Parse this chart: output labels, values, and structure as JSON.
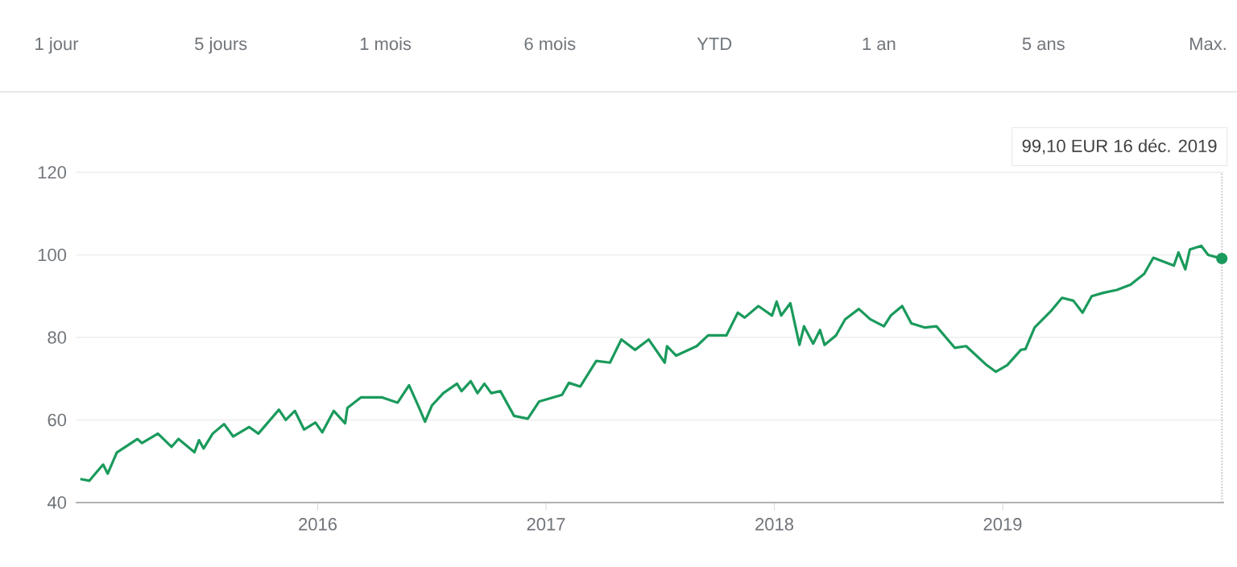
{
  "chart_data": {
    "type": "line",
    "x": [
      2014.96,
      2015.0,
      2015.06,
      2015.08,
      2015.12,
      2015.21,
      2015.23,
      2015.3,
      2015.36,
      2015.39,
      2015.46,
      2015.48,
      2015.5,
      2015.54,
      2015.59,
      2015.63,
      2015.7,
      2015.74,
      2015.83,
      2015.86,
      2015.9,
      2015.94,
      2015.99,
      2016.02,
      2016.07,
      2016.12,
      2016.13,
      2016.19,
      2016.28,
      2016.35,
      2016.4,
      2016.44,
      2016.47,
      2016.5,
      2016.55,
      2016.61,
      2016.63,
      2016.67,
      2016.7,
      2016.73,
      2016.76,
      2016.8,
      2016.86,
      2016.92,
      2016.97,
      2017.07,
      2017.1,
      2017.15,
      2017.22,
      2017.28,
      2017.33,
      2017.39,
      2017.45,
      2017.52,
      2017.53,
      2017.57,
      2017.66,
      2017.71,
      2017.79,
      2017.84,
      2017.87,
      2017.93,
      2017.99,
      2018.01,
      2018.03,
      2018.07,
      2018.11,
      2018.13,
      2018.17,
      2018.2,
      2018.22,
      2018.27,
      2018.31,
      2018.37,
      2018.42,
      2018.48,
      2018.51,
      2018.56,
      2018.6,
      2018.66,
      2018.71,
      2018.79,
      2018.84,
      2018.93,
      2018.97,
      2019.02,
      2019.08,
      2019.1,
      2019.14,
      2019.21,
      2019.26,
      2019.31,
      2019.35,
      2019.39,
      2019.44,
      2019.5,
      2019.56,
      2019.62,
      2019.66,
      2019.69,
      2019.75,
      2019.77,
      2019.8,
      2019.82,
      2019.87,
      2019.9,
      2019.96
    ],
    "values": [
      45.7,
      45.3,
      49.2,
      47.0,
      52.1,
      55.4,
      54.4,
      56.7,
      53.5,
      55.4,
      52.2,
      55.1,
      53.1,
      56.7,
      59.0,
      56.0,
      58.3,
      56.7,
      62.5,
      60.0,
      62.2,
      57.7,
      59.4,
      57.0,
      62.2,
      59.2,
      62.9,
      65.5,
      65.5,
      64.2,
      68.4,
      63.5,
      59.6,
      63.5,
      66.5,
      68.8,
      67.0,
      69.4,
      66.5,
      68.8,
      66.5,
      67.0,
      61.0,
      60.3,
      64.5,
      66.1,
      69.0,
      68.1,
      74.3,
      73.9,
      79.5,
      77.0,
      79.5,
      73.9,
      77.9,
      75.6,
      77.9,
      80.5,
      80.5,
      86.0,
      84.8,
      87.6,
      85.3,
      88.7,
      85.3,
      88.3,
      78.2,
      82.7,
      78.5,
      81.8,
      78.2,
      80.5,
      84.4,
      86.9,
      84.4,
      82.7,
      85.3,
      87.6,
      83.4,
      82.4,
      82.7,
      77.5,
      77.9,
      73.3,
      71.7,
      73.3,
      77.0,
      77.2,
      82.4,
      86.3,
      89.6,
      88.9,
      86.0,
      90.0,
      90.8,
      91.5,
      92.8,
      95.4,
      99.3,
      98.7,
      97.4,
      100.6,
      96.5,
      101.3,
      102.2,
      100.0,
      99.1
    ],
    "color": "#1a9a5c",
    "xlim": [
      2014.94,
      2019.97
    ],
    "xticks": [
      2016,
      2017,
      2018,
      2019
    ],
    "ylim": [
      40,
      120
    ],
    "yticks": [
      40,
      60,
      80,
      100,
      120
    ],
    "grid": "y",
    "marker": "none",
    "line_style": "solid",
    "ref_lines": [
      {
        "axis": "x",
        "value": 2019.96,
        "line_style": "dotted",
        "color": "#bbbbbb"
      }
    ],
    "annotations": [
      "1 jour",
      "5 jours",
      "1 mois",
      "6 mois",
      "YTD",
      "1 an",
      "5 ans",
      "Max.",
      "99,10 EUR  16 déc. 2019"
    ]
  }
}
